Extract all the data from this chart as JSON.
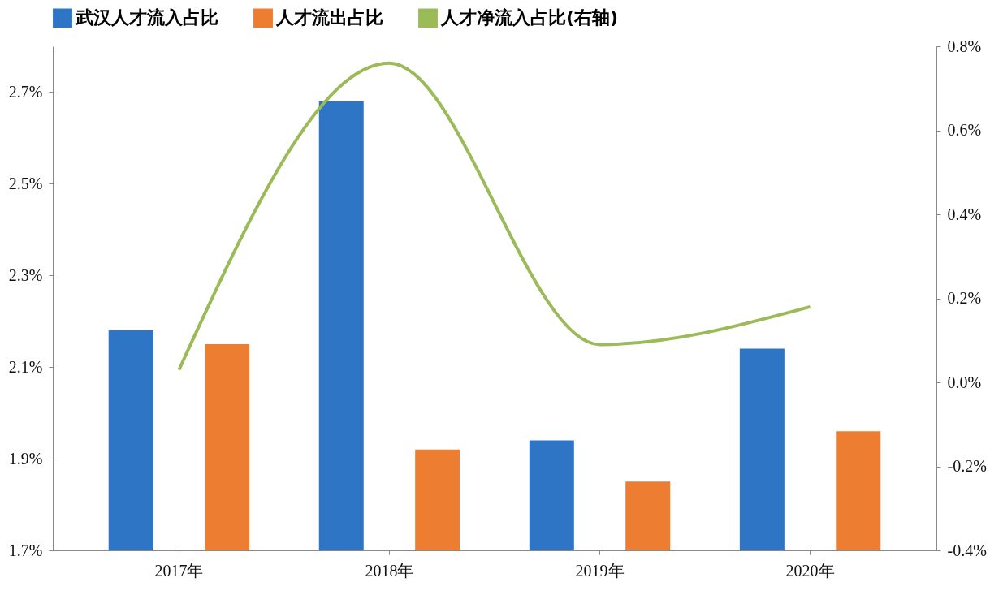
{
  "chart_data": {
    "type": "bar",
    "categories": [
      "2017年",
      "2018年",
      "2019年",
      "2020年"
    ],
    "series": [
      {
        "name": "武汉人才流入占比",
        "color": "#2e75c6",
        "values": [
          2.18,
          2.68,
          1.94,
          2.14
        ]
      },
      {
        "name": "人才流出占比",
        "color": "#ed7d31",
        "values": [
          2.15,
          1.92,
          1.85,
          1.96
        ]
      },
      {
        "name": "人才净流入占比(右轴)",
        "type": "line",
        "axis": "y2",
        "color": "#9bbb59",
        "values": [
          0.03,
          0.76,
          0.09,
          0.18
        ]
      }
    ],
    "ylim": [
      1.7,
      2.8
    ],
    "yticks": [
      {
        "value": 1.7,
        "label": "1.7%"
      },
      {
        "value": 1.9,
        "label": "1.9%"
      },
      {
        "value": 2.1,
        "label": "2.1%"
      },
      {
        "value": 2.3,
        "label": "2.3%"
      },
      {
        "value": 2.5,
        "label": "2.5%"
      },
      {
        "value": 2.7,
        "label": "2.7%"
      }
    ],
    "y2lim": [
      -0.4,
      0.8
    ],
    "y2ticks": [
      {
        "value": -0.4,
        "label": "-0.4%"
      },
      {
        "value": -0.2,
        "label": "-0.2%"
      },
      {
        "value": 0,
        "label": "0.0%"
      },
      {
        "value": 0.2,
        "label": "0.2%"
      },
      {
        "value": 0.4,
        "label": "0.4%"
      },
      {
        "value": 0.6,
        "label": "0.6%"
      },
      {
        "value": 0.8,
        "label": "0.8%"
      }
    ],
    "legend": "top"
  }
}
